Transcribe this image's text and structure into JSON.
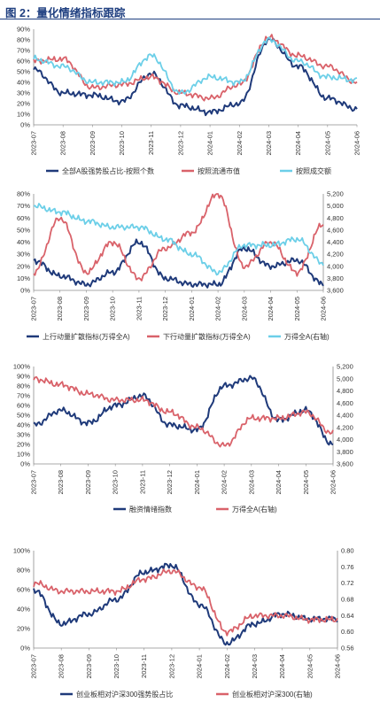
{
  "page": {
    "title": "图 2：量化情绪指标跟踪"
  },
  "colors": {
    "navy": "#1f3a7a",
    "red": "#d9626a",
    "cyan": "#6ccfe8",
    "axis": "#8c8c8c",
    "text": "#333333"
  },
  "chart_data": [
    {
      "type": "line",
      "legend_position": "bottom",
      "grid": false,
      "x": [
        "2023-07",
        "2023-08",
        "2023-09",
        "2023-10",
        "2023-11",
        "2023-12",
        "2024-01",
        "2024-02",
        "2024-03",
        "2024-04",
        "2024-05",
        "2024-06"
      ],
      "y_ticks": [
        "0%",
        "10%",
        "20%",
        "30%",
        "40%",
        "50%",
        "60%",
        "70%",
        "80%",
        "90%"
      ],
      "ylim": [
        0,
        90
      ],
      "series": [
        {
          "name": "全部A股强势股占比-按照个数",
          "color": "#1f3a7a",
          "axis": "left",
          "values": [
            52,
            30,
            28,
            22,
            48,
            18,
            12,
            20,
            80,
            55,
            25,
            15
          ]
        },
        {
          "name": "按照流通市值",
          "color": "#d9626a",
          "axis": "left",
          "values": [
            60,
            62,
            35,
            38,
            45,
            30,
            25,
            38,
            82,
            65,
            55,
            40
          ]
        },
        {
          "name": "按照成交额",
          "color": "#6ccfe8",
          "axis": "left",
          "values": [
            62,
            55,
            40,
            40,
            65,
            30,
            45,
            40,
            80,
            60,
            45,
            42
          ]
        }
      ]
    },
    {
      "type": "line",
      "legend_position": "bottom",
      "grid": false,
      "x": [
        "2023-07",
        "2023-08",
        "2023-09",
        "2023-10",
        "2023-11",
        "2023-12",
        "2024-01",
        "2024-02",
        "2024-03",
        "2024-04",
        "2024-05",
        "2024-06"
      ],
      "y_ticks": [
        "0%",
        "10%",
        "20%",
        "30%",
        "40%",
        "50%",
        "60%",
        "70%",
        "80%"
      ],
      "y2_ticks": [
        "3,600",
        "3,800",
        "4,000",
        "4,200",
        "4,400",
        "4,600",
        "4,800",
        "5,000",
        "5,200"
      ],
      "ylim": [
        0,
        80
      ],
      "y2lim": [
        3600,
        5200
      ],
      "series": [
        {
          "name": "上行动量扩散指标(万得全A)",
          "color": "#1f3a7a",
          "axis": "left",
          "values": [
            25,
            12,
            5,
            15,
            40,
            10,
            5,
            5,
            35,
            20,
            25,
            5
          ]
        },
        {
          "name": "下行动量扩散指标(万得全A)",
          "color": "#d9626a",
          "axis": "left",
          "values": [
            15,
            60,
            15,
            40,
            10,
            35,
            48,
            80,
            20,
            40,
            15,
            55
          ]
        },
        {
          "name": "万得全A(右轴)",
          "color": "#6ccfe8",
          "axis": "right",
          "values": [
            5000,
            4900,
            4750,
            4650,
            4650,
            4450,
            4200,
            3900,
            4350,
            4350,
            4450,
            4050
          ]
        }
      ]
    },
    {
      "type": "line",
      "legend_position": "bottom",
      "grid": false,
      "x": [
        "2023-07",
        "2023-08",
        "2023-09",
        "2023-10",
        "2023-11",
        "2023-12",
        "2024-01",
        "2024-02",
        "2024-03",
        "2024-04",
        "2024-05",
        "2024-06"
      ],
      "y_ticks": [
        "0%",
        "10%",
        "20%",
        "30%",
        "40%",
        "50%",
        "60%",
        "70%",
        "80%",
        "90%",
        "100%"
      ],
      "y2_ticks": [
        "3,600",
        "3,800",
        "4,000",
        "4,200",
        "4,400",
        "4,600",
        "4,800",
        "5,000",
        "5,200"
      ],
      "ylim": [
        0,
        100
      ],
      "y2lim": [
        3600,
        5200
      ],
      "series": [
        {
          "name": "融资情绪指数",
          "color": "#1f3a7a",
          "axis": "left",
          "values": [
            40,
            55,
            42,
            60,
            70,
            40,
            35,
            80,
            88,
            45,
            55,
            20
          ]
        },
        {
          "name": "万得全A(右轴)",
          "color": "#d9626a",
          "axis": "right",
          "values": [
            5000,
            4900,
            4750,
            4650,
            4650,
            4450,
            4200,
            3900,
            4350,
            4350,
            4450,
            4100
          ]
        }
      ]
    },
    {
      "type": "line",
      "legend_position": "bottom",
      "grid": false,
      "x": [
        "2023-07",
        "2023-08",
        "2023-09",
        "2023-10",
        "2023-11",
        "2023-12",
        "2024-01",
        "2024-02",
        "2024-03",
        "2024-04",
        "2024-05",
        "2024-06"
      ],
      "y_ticks": [
        "0%",
        "20%",
        "40%",
        "60%",
        "80%",
        "100%"
      ],
      "y2_ticks": [
        "0.56",
        "0.60",
        "0.64",
        "0.68",
        "0.72",
        "0.76",
        "0.80"
      ],
      "ylim": [
        0,
        100
      ],
      "y2lim": [
        0.56,
        0.8
      ],
      "series": [
        {
          "name": "创业板相对沪深300强势股占比",
          "color": "#1f3a7a",
          "axis": "left",
          "values": [
            60,
            25,
            35,
            50,
            78,
            85,
            45,
            5,
            25,
            35,
            30,
            30
          ]
        },
        {
          "name": "创业板相对沪深300(右轴)",
          "color": "#d9626a",
          "axis": "right",
          "values": [
            0.72,
            0.7,
            0.7,
            0.7,
            0.73,
            0.75,
            0.71,
            0.6,
            0.64,
            0.64,
            0.63,
            0.63
          ]
        }
      ]
    }
  ]
}
